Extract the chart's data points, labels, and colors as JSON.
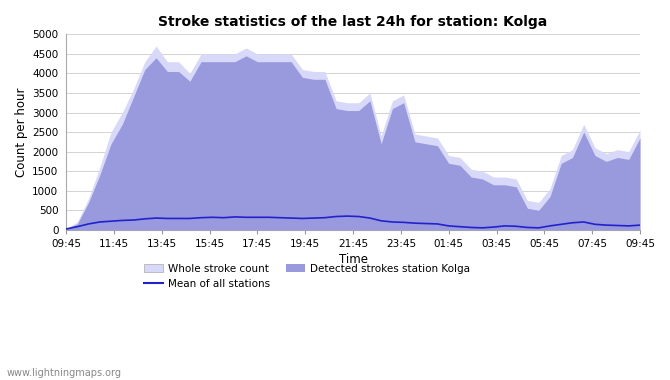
{
  "title": "Stroke statistics of the last 24h for station: Kolga",
  "xlabel": "Time",
  "ylabel": "Count per hour",
  "x_labels": [
    "09:45",
    "11:45",
    "13:45",
    "15:45",
    "17:45",
    "19:45",
    "21:45",
    "23:45",
    "01:45",
    "03:45",
    "05:45",
    "07:45",
    "09:45"
  ],
  "ylim": [
    0,
    5000
  ],
  "yticks": [
    0,
    500,
    1000,
    1500,
    2000,
    2500,
    3000,
    3500,
    4000,
    4500,
    5000
  ],
  "whole_stroke_color": "#d8d8f8",
  "detected_stroke_color": "#9999dd",
  "mean_line_color": "#2222cc",
  "watermark": "www.lightningmaps.org",
  "whole_stroke": [
    30,
    200,
    800,
    1600,
    2500,
    3000,
    3600,
    4300,
    4700,
    4300,
    4300,
    4000,
    4500,
    4500,
    4500,
    4500,
    4650,
    4500,
    4500,
    4500,
    4500,
    4100,
    4050,
    4050,
    3300,
    3250,
    3250,
    3500,
    2400,
    3300,
    3450,
    2450,
    2400,
    2350,
    1900,
    1850,
    1550,
    1500,
    1350,
    1350,
    1300,
    750,
    700,
    1050,
    1900,
    2050,
    2700,
    2100,
    1950,
    2050,
    2000,
    2550
  ],
  "detected_stroke": [
    30,
    150,
    700,
    1400,
    2200,
    2700,
    3400,
    4100,
    4400,
    4050,
    4050,
    3800,
    4300,
    4300,
    4300,
    4300,
    4450,
    4300,
    4300,
    4300,
    4300,
    3900,
    3850,
    3850,
    3100,
    3050,
    3050,
    3300,
    2200,
    3100,
    3250,
    2250,
    2200,
    2150,
    1700,
    1650,
    1350,
    1300,
    1150,
    1150,
    1100,
    550,
    500,
    850,
    1700,
    1850,
    2500,
    1900,
    1750,
    1850,
    1800,
    2350
  ],
  "mean_line": [
    20,
    80,
    150,
    200,
    220,
    240,
    250,
    280,
    300,
    290,
    290,
    290,
    310,
    320,
    310,
    330,
    320,
    320,
    320,
    310,
    300,
    290,
    300,
    310,
    340,
    350,
    340,
    300,
    230,
    200,
    190,
    170,
    160,
    150,
    100,
    80,
    60,
    50,
    70,
    100,
    90,
    60,
    50,
    100,
    140,
    180,
    200,
    140,
    120,
    110,
    100,
    120
  ]
}
